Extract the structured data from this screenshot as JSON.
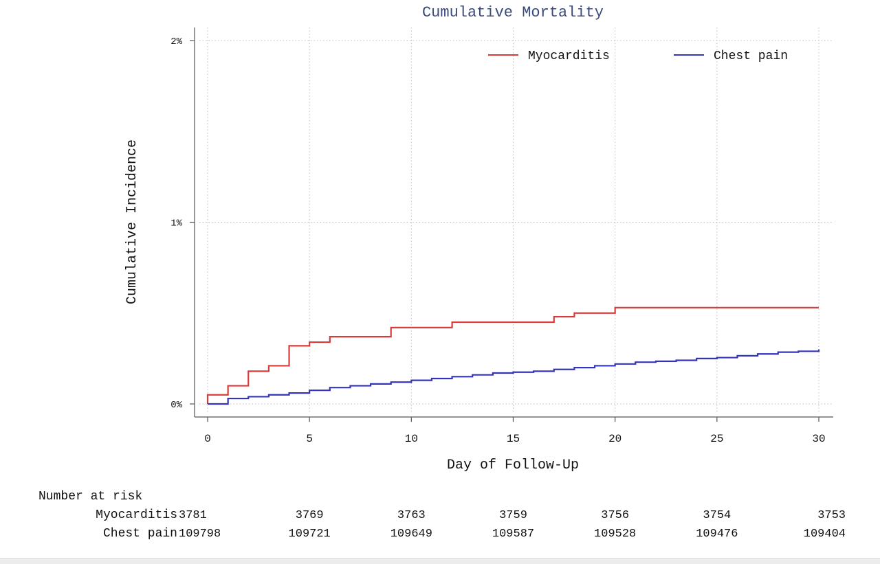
{
  "chart_data": {
    "type": "line",
    "step": true,
    "title": "Cumulative Mortality",
    "xlabel": "Day of Follow-Up",
    "ylabel": "Cumulative Incidence",
    "xlim": [
      0,
      30
    ],
    "ylim": [
      0,
      2
    ],
    "x_ticks": [
      0,
      5,
      10,
      15,
      20,
      25,
      30
    ],
    "x_tick_labels": [
      "0",
      "5",
      "10",
      "15",
      "20",
      "25",
      "30"
    ],
    "y_ticks": [
      0,
      1,
      2
    ],
    "y_tick_labels": [
      "0%",
      "1%",
      "2%"
    ],
    "grid": true,
    "legend_position": "top-right",
    "colors": {
      "Myocarditis": "#d93b3b",
      "Chest pain": "#3333bb",
      "title": "#3a4a7a"
    },
    "series": [
      {
        "name": "Myocarditis",
        "x": [
          0,
          1,
          2,
          3,
          4,
          5,
          6,
          9,
          12,
          17,
          18,
          20,
          30
        ],
        "y": [
          0.05,
          0.1,
          0.18,
          0.21,
          0.32,
          0.34,
          0.37,
          0.42,
          0.45,
          0.48,
          0.5,
          0.53,
          0.53
        ]
      },
      {
        "name": "Chest pain",
        "x": [
          0,
          1,
          2,
          3,
          4,
          5,
          6,
          7,
          8,
          9,
          10,
          11,
          12,
          13,
          14,
          15,
          16,
          17,
          18,
          19,
          20,
          21,
          22,
          23,
          24,
          25,
          26,
          27,
          28,
          29,
          30
        ],
        "y": [
          0,
          0.03,
          0.04,
          0.05,
          0.06,
          0.075,
          0.09,
          0.1,
          0.11,
          0.12,
          0.13,
          0.14,
          0.15,
          0.16,
          0.17,
          0.175,
          0.18,
          0.19,
          0.2,
          0.21,
          0.22,
          0.23,
          0.235,
          0.24,
          0.25,
          0.255,
          0.265,
          0.275,
          0.285,
          0.29,
          0.3
        ]
      }
    ],
    "risk_table": {
      "heading": "Number at risk",
      "x": [
        0,
        5,
        10,
        15,
        20,
        25,
        30
      ],
      "rows": [
        {
          "label": "Myocarditis",
          "values": [
            "3781",
            "3769",
            "3763",
            "3759",
            "3756",
            "3754",
            "3753"
          ]
        },
        {
          "label": "Chest pain",
          "values": [
            "109798",
            "109721",
            "109649",
            "109587",
            "109528",
            "109476",
            "109404"
          ]
        }
      ]
    }
  }
}
